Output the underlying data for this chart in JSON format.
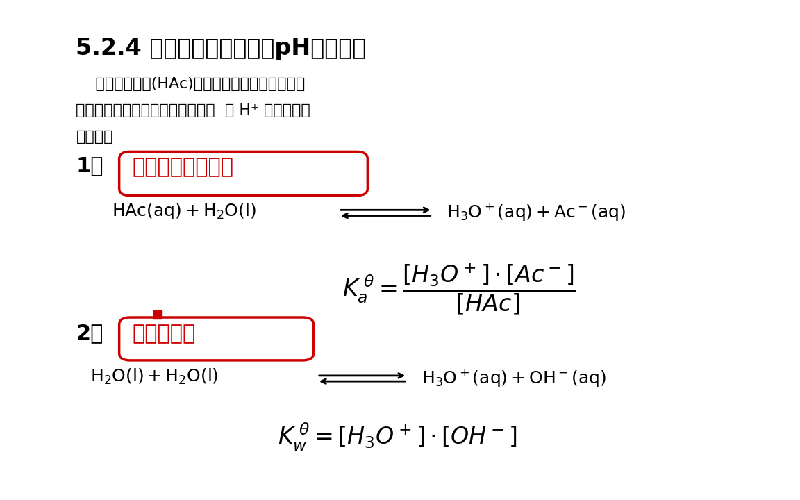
{
  "bg_color": "#ffffff",
  "side_color": "#1a1a1a",
  "top_bar_color": "#3a3a3a",
  "title": "5.2.4 一元弱酸（碱）溶液pH值的计算",
  "para_line1": "    对于一元弱酸(HAc)水溶液来讲，溶液中，同时",
  "para_line2": "存在着弱酸和水的两种离解平衡。  （ H⁺ ）来自于两",
  "para_line3": "个方面：",
  "label1_prefix": "1）",
  "label1_text": "弱酸自身的离解：",
  "label2_prefix": "2）",
  "label2_text": "水的离解：",
  "red_color": "#cc0000",
  "text_color": "#000000",
  "title_fontsize": 24,
  "body_fontsize": 16,
  "label_fontsize": 22,
  "eq_fontsize": 18,
  "math_fontsize": 22
}
